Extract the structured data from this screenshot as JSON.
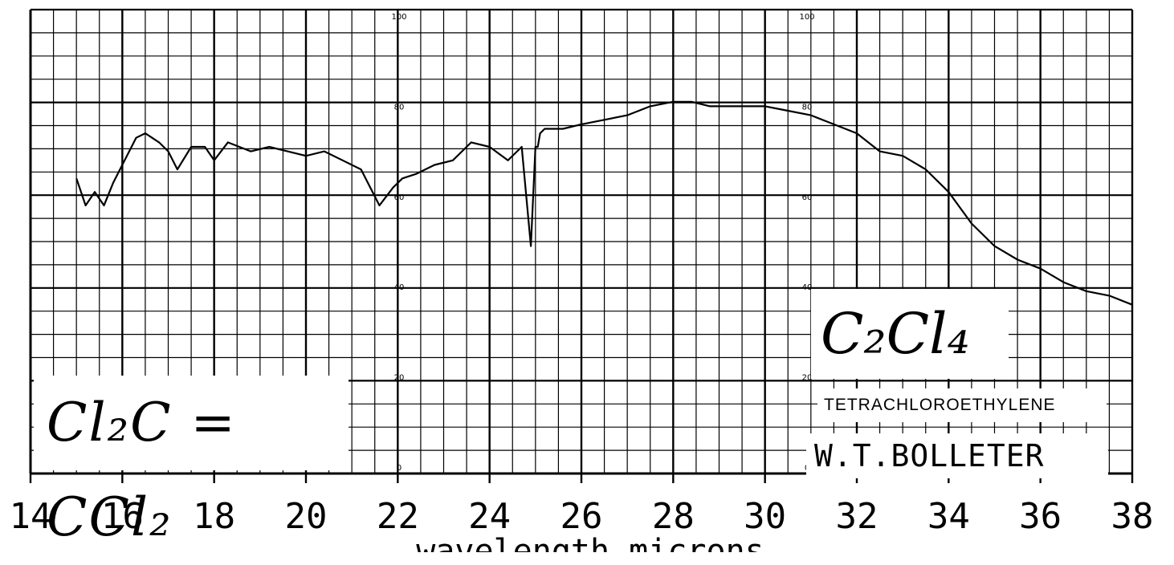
{
  "chart_data": {
    "type": "line",
    "title": "",
    "xlabel": "wavelength microns",
    "ylabel": "",
    "xlim": [
      14.5,
      38
    ],
    "ylim": [
      0,
      100
    ],
    "x_ticks": [
      "14",
      "16",
      "18",
      "20",
      "22",
      "24",
      "26",
      "28",
      "30",
      "32",
      "34",
      "36",
      "38"
    ],
    "y_ticks": [
      "0",
      "20",
      "40",
      "60",
      "80",
      "100"
    ],
    "grid": true,
    "series": [
      {
        "x": [
          15.0,
          15.2,
          15.4,
          15.6,
          15.8,
          16.0,
          16.3,
          16.5,
          16.8,
          17.0,
          17.2,
          17.5,
          17.8,
          18.0,
          18.3,
          18.8,
          19.2,
          19.6,
          20.0,
          20.4,
          20.8,
          21.2,
          21.6,
          21.9,
          22.1,
          22.4,
          22.8,
          23.2,
          23.6,
          24.0,
          24.4,
          24.7,
          24.9,
          25.0,
          25.05,
          25.1,
          25.2,
          25.6,
          26.0,
          26.5,
          27.0,
          27.5,
          28.0,
          28.4,
          28.8,
          29.2,
          29.6,
          30.0,
          30.5,
          31.0,
          31.5,
          32.0,
          32.5,
          33.0,
          33.5,
          34.0,
          34.5,
          35.0,
          35.5,
          36.0,
          36.5,
          37.0,
          37.5,
          38.0
        ],
        "y": [
          64,
          58,
          61,
          58,
          63,
          67,
          73,
          74,
          72,
          70,
          66,
          71,
          71,
          68,
          72,
          70,
          71,
          70,
          69,
          70,
          68,
          66,
          58,
          62,
          64,
          65,
          67,
          68,
          72,
          71,
          68,
          71,
          49,
          71,
          71,
          74,
          75,
          75,
          76,
          77,
          78,
          80,
          81,
          81,
          80,
          80,
          80,
          80,
          79,
          78,
          76,
          74,
          70,
          69,
          66,
          61,
          54,
          49,
          46,
          44,
          41,
          39,
          38,
          36
        ]
      }
    ]
  },
  "annotations": {
    "left_formula": "Cl₂C = CCl₂",
    "right_formula": "C₂Cl₄",
    "compound_name": "TETRACHLOROETHYLENE",
    "author": "W.T.BOLLETER"
  }
}
